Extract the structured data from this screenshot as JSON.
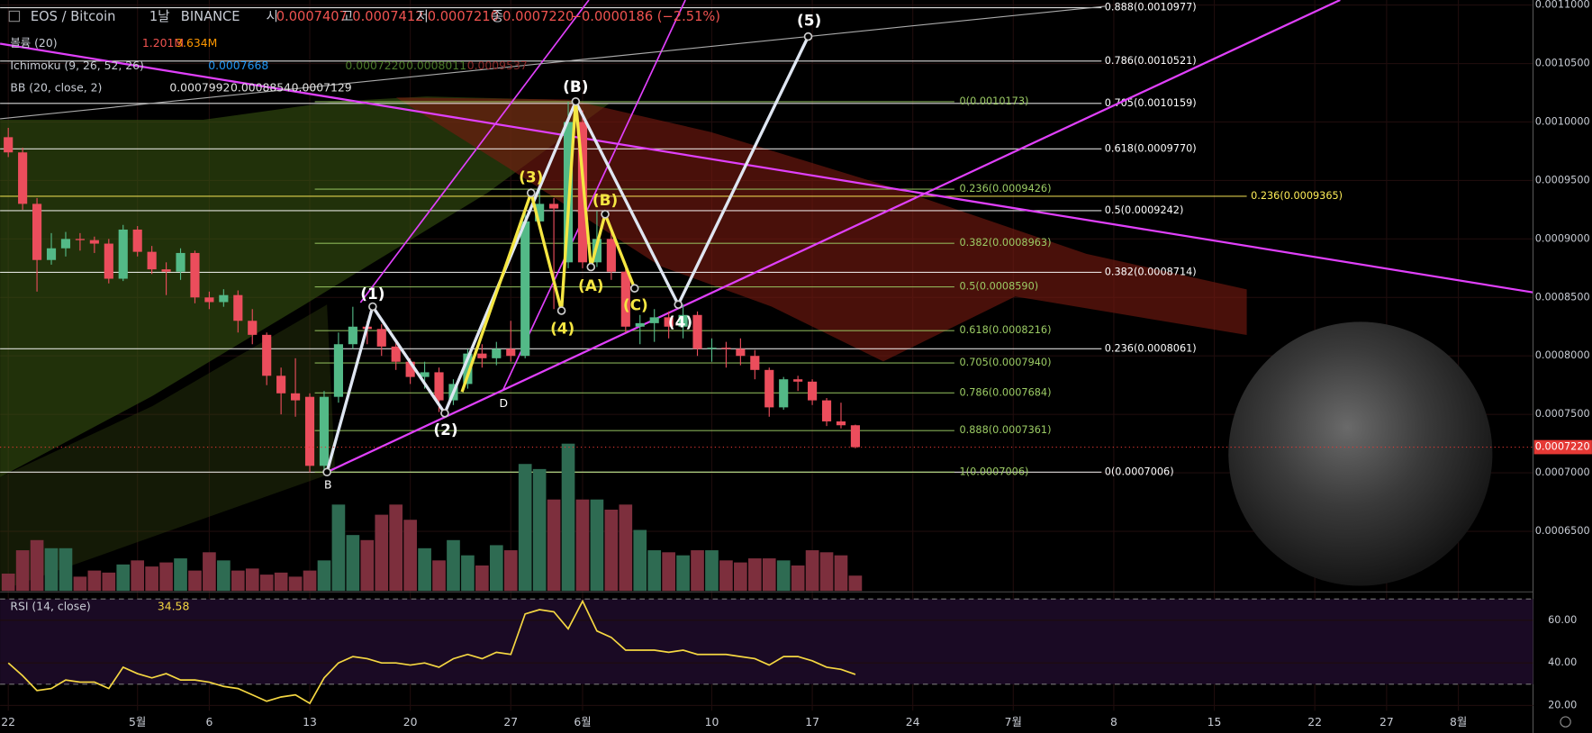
{
  "chart_data": {
    "type": "candlestick",
    "header": {
      "symbol": "EOS / Bitcoin",
      "interval": "1날",
      "exchange": "BINANCE",
      "open_label": "시",
      "open": "0.0007407",
      "high_label": "고",
      "high": "0.0007412",
      "low_label": "저",
      "low": "0.0007210",
      "close_label": "종",
      "close": "0.0007220",
      "change": "−0.0000186 (−2.51%)"
    },
    "indicators": {
      "volume": {
        "name": "볼륨 (20)",
        "values": [
          "1.201M",
          "3.634M"
        ]
      },
      "ichimoku": {
        "name": "Ichimoku (9, 26, 52, 26)",
        "values": [
          "0.0007668",
          "0.0007220",
          "0.0008011",
          "0.0009537"
        ]
      },
      "bb": {
        "name": "BB (20, close, 2)",
        "values": [
          "0.0007992",
          "0.0008854",
          "0.0007129"
        ]
      }
    },
    "candles": {
      "up_color": "#53b987",
      "down_color": "#eb4d5c",
      "open": [
        0.000987,
        0.000974,
        0.00093,
        0.000882,
        0.000892,
        0.0009,
        0.000899,
        0.000896,
        0.000866,
        0.000908,
        0.000889,
        0.000874,
        0.000872,
        0.000888,
        0.00085,
        0.000846,
        0.000852,
        0.00083,
        0.000818,
        0.000783,
        0.000768,
        0.000765,
        0.000706,
        0.000765,
        0.00081,
        0.000825,
        0.000823,
        0.000808,
        0.000795,
        0.000782,
        0.000786,
        0.000762,
        0.000776,
        0.000802,
        0.000798,
        0.000806,
        0.0008,
        0.000915,
        0.00093,
        0.00088,
        0.001,
        0.00088,
        0.0009,
        0.000872,
        0.000825,
        0.000828,
        0.000833,
        0.000825,
        0.000835,
        0.000806,
        0.000807,
        0.000806,
        0.0008,
        0.000788,
        0.000756,
        0.00078,
        0.000778,
        0.000762,
        0.000744,
        0.0007407
      ],
      "high": [
        0.000995,
        0.000978,
        0.000935,
        0.000905,
        0.000906,
        0.000905,
        0.000902,
        0.0009,
        0.000912,
        0.000911,
        0.000894,
        0.00088,
        0.000892,
        0.00089,
        0.000855,
        0.000857,
        0.000856,
        0.00084,
        0.00082,
        0.00079,
        0.000798,
        0.000768,
        0.00077,
        0.00082,
        0.000842,
        0.00083,
        0.000827,
        0.000812,
        0.000798,
        0.000795,
        0.00079,
        0.00078,
        0.000806,
        0.00081,
        0.000812,
        0.00083,
        0.000922,
        0.000942,
        0.000935,
        0.0010173,
        0.00101,
        0.000924,
        0.00091,
        0.000876,
        0.000835,
        0.00084,
        0.000838,
        0.000844,
        0.000838,
        0.000815,
        0.000812,
        0.000815,
        0.000805,
        0.00079,
        0.000782,
        0.000783,
        0.00078,
        0.000764,
        0.00076,
        0.0007412
      ],
      "low": [
        0.00097,
        0.000925,
        0.000855,
        0.000878,
        0.000885,
        0.00089,
        0.000888,
        0.000862,
        0.000864,
        0.000885,
        0.00087,
        0.000852,
        0.000865,
        0.000845,
        0.00084,
        0.000842,
        0.00082,
        0.00081,
        0.000775,
        0.00075,
        0.000748,
        0.0007006,
        0.000702,
        0.00076,
        0.000806,
        0.00081,
        0.0008,
        0.000788,
        0.000776,
        0.000772,
        0.000752,
        0.000758,
        0.000772,
        0.00079,
        0.000792,
        0.000795,
        0.000798,
        0.00091,
        0.00084,
        0.000875,
        0.000875,
        0.000876,
        0.000865,
        0.00082,
        0.00081,
        0.000812,
        0.000815,
        0.000815,
        0.0008,
        0.000795,
        0.00079,
        0.000792,
        0.00078,
        0.000748,
        0.000754,
        0.00077,
        0.000758,
        0.00074,
        0.000738,
        0.000721
      ],
      "close": [
        0.000974,
        0.00093,
        0.000882,
        0.000892,
        0.0009,
        0.000899,
        0.000896,
        0.000866,
        0.000908,
        0.000889,
        0.000874,
        0.000872,
        0.000888,
        0.00085,
        0.000846,
        0.000852,
        0.00083,
        0.000818,
        0.000783,
        0.000768,
        0.000762,
        0.000706,
        0.000765,
        0.00081,
        0.000825,
        0.000823,
        0.000808,
        0.000795,
        0.000782,
        0.000786,
        0.000762,
        0.000776,
        0.000802,
        0.000798,
        0.000806,
        0.0008,
        0.000915,
        0.00093,
        0.000926,
        0.001,
        0.00088,
        0.0009,
        0.000872,
        0.000825,
        0.000828,
        0.000833,
        0.000825,
        0.000835,
        0.000806,
        0.000807,
        0.000806,
        0.0008,
        0.000788,
        0.000756,
        0.00078,
        0.000778,
        0.000762,
        0.000744,
        0.0007407,
        0.000722
      ]
    },
    "xlim": [
      -0.57,
      106.2
    ],
    "xticks": [
      {
        "value": 0,
        "label": "22"
      },
      {
        "value": 9,
        "label": "5월"
      },
      {
        "value": 14,
        "label": "6"
      },
      {
        "value": 21,
        "label": "13"
      },
      {
        "value": 28,
        "label": "20"
      },
      {
        "value": 35,
        "label": "27"
      },
      {
        "value": 40,
        "label": "6월"
      },
      {
        "value": 49,
        "label": "10"
      },
      {
        "value": 56,
        "label": "17"
      },
      {
        "value": 63,
        "label": "24"
      },
      {
        "value": 70,
        "label": "7월"
      },
      {
        "value": 77,
        "label": "8"
      },
      {
        "value": 84,
        "label": "15"
      },
      {
        "value": 91,
        "label": "22"
      },
      {
        "value": 96,
        "label": "27"
      },
      {
        "value": 101,
        "label": "8월"
      }
    ],
    "ylim": [
      0.0005991,
      0.0011043
    ],
    "yticks": [
      {
        "value": 0.0011,
        "label": "0.0011000"
      },
      {
        "value": 0.00105,
        "label": "0.0010500"
      },
      {
        "value": 0.001,
        "label": "0.0010000"
      },
      {
        "value": 0.00095,
        "label": "0.0009500"
      },
      {
        "value": 0.0009,
        "label": "0.0009000"
      },
      {
        "value": 0.00085,
        "label": "0.0008500"
      },
      {
        "value": 0.0008,
        "label": "0.0008000"
      },
      {
        "value": 0.00075,
        "label": "0.0007500"
      },
      {
        "value": 0.0007,
        "label": "0.0007000"
      },
      {
        "value": 0.00065,
        "label": "0.0006500"
      }
    ],
    "grid": true,
    "last_price": {
      "value": 0.000722,
      "label": "0.0007220",
      "color": "#e53935"
    },
    "volume": {
      "up_color": "#2e6b52",
      "down_color": "#7d2f3d",
      "values": [
        1360000,
        3200000,
        4000000,
        3360000,
        3360000,
        1120000,
        1600000,
        1440000,
        2080000,
        2400000,
        1920000,
        2240000,
        2560000,
        1600000,
        3040000,
        2400000,
        1600000,
        1760000,
        1280000,
        1440000,
        1120000,
        1600000,
        2400000,
        6800000,
        4400000,
        4000000,
        6000000,
        6800000,
        5600000,
        3360000,
        2400000,
        4000000,
        2800000,
        2000000,
        3600000,
        3200000,
        10000000,
        9600000,
        7200000,
        11600000,
        7200000,
        7200000,
        6400000,
        6800000,
        4800000,
        3200000,
        3040000,
        2800000,
        3200000,
        3200000,
        2400000,
        2240000,
        2560000,
        2560000,
        2400000,
        2000000,
        3200000,
        3040000,
        2800000,
        1201000
      ]
    },
    "fib_white": {
      "color": "#ffffff",
      "levels": [
        {
          "label": "0.888(0.0010977)",
          "price": 0.0010977
        },
        {
          "label": "0.786(0.0010521)",
          "price": 0.0010521
        },
        {
          "label": "0.705(0.0010159)",
          "price": 0.0010159
        },
        {
          "label": "0.618(0.0009770)",
          "price": 0.000977
        },
        {
          "label": "0.5(0.0009242)",
          "price": 0.0009242
        },
        {
          "label": "0.382(0.0008714)",
          "price": 0.0008714
        },
        {
          "label": "0.236(0.0008061)",
          "price": 0.0008061
        },
        {
          "label": "0(0.0007006)",
          "price": 0.0007006
        }
      ]
    },
    "fib_green": {
      "color": "#9ccc65",
      "levels": [
        {
          "label": "0(0.0010173)",
          "price": 0.0010173
        },
        {
          "label": "0.236(0.0009426)",
          "price": 0.0009426
        },
        {
          "label": "0.382(0.0008963)",
          "price": 0.0008963
        },
        {
          "label": "0.5(0.0008590)",
          "price": 0.000859
        },
        {
          "label": "0.618(0.0008216)",
          "price": 0.0008216
        },
        {
          "label": "0.705(0.0007940)",
          "price": 0.000794
        },
        {
          "label": "0.786(0.0007684)",
          "price": 0.0007684
        },
        {
          "label": "0.888(0.0007361)",
          "price": 0.0007361
        },
        {
          "label": "1(0.0007006)",
          "price": 0.0007006
        }
      ]
    },
    "fib_yellow": {
      "color": "#ffee58",
      "levels": [
        {
          "label": "0.236(0.0009365)",
          "price": 0.0009365
        }
      ]
    },
    "annotations": [
      "(1)",
      "(2)",
      "(3)",
      "(4)",
      "(5)",
      "(B)",
      "(A)",
      "(B)",
      "(C)",
      "(4)",
      "B",
      "D"
    ],
    "rsi": {
      "name": "RSI (14, close)",
      "color": "#f5d742",
      "values": [
        40,
        34,
        27,
        28,
        32,
        31,
        31,
        28,
        38,
        35,
        33,
        35,
        32,
        32,
        31,
        29,
        28,
        25,
        22,
        24,
        25,
        21,
        33,
        40,
        43,
        42,
        40,
        40,
        39,
        40,
        38,
        42,
        44,
        42,
        45,
        44,
        63,
        65,
        64,
        56,
        69,
        55,
        52,
        46,
        46,
        46,
        45,
        46,
        44,
        44,
        44,
        43,
        42,
        39,
        43,
        43,
        41,
        38,
        37,
        34.58
      ],
      "ylim": [
        7.1,
        72.4
      ],
      "yticks": [
        {
          "value": 60,
          "label": "60.00"
        },
        {
          "value": 40,
          "label": "40.00"
        },
        {
          "value": 20,
          "label": "20.00"
        }
      ],
      "bands": [
        30,
        70
      ]
    }
  }
}
